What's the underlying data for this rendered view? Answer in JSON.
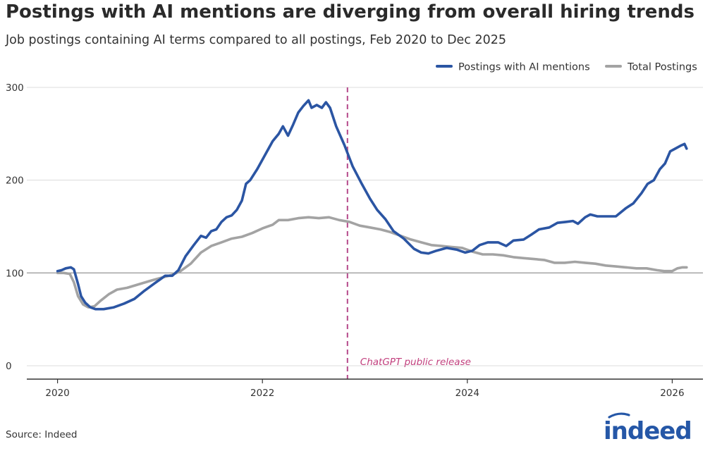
{
  "header": {
    "title": "Postings with AI mentions are diverging from overall hiring trends",
    "subtitle": "Job postings containing AI terms compared to all postings, Feb 2020 to Dec 2025"
  },
  "footer": {
    "source": "Source: Indeed"
  },
  "brand": {
    "logo_text": "indeed",
    "color": "#2557a7"
  },
  "chart_data": {
    "type": "line",
    "x_unit": "year",
    "xlim": [
      2019.7,
      2026.3
    ],
    "ylim": [
      0,
      300
    ],
    "x_ticks": [
      2020,
      2022,
      2024,
      2026
    ],
    "x_tick_labels": [
      "2020",
      "2022",
      "2024",
      "2026"
    ],
    "y_ticks": [
      0,
      100,
      200,
      300
    ],
    "y_tick_labels": [
      "0",
      "100",
      "200",
      "300"
    ],
    "grid": "horizontal",
    "baseline": 100,
    "legend": {
      "position": "top-right"
    },
    "annotation": {
      "x": 2022.83,
      "label": "ChatGPT public release",
      "color": "#b5488a"
    },
    "series": [
      {
        "name": "Postings with AI mentions",
        "color": "#2b55a3",
        "points": [
          [
            2020.0,
            102
          ],
          [
            2020.04,
            103
          ],
          [
            2020.08,
            105
          ],
          [
            2020.13,
            106
          ],
          [
            2020.16,
            104
          ],
          [
            2020.2,
            88
          ],
          [
            2020.23,
            75
          ],
          [
            2020.27,
            68
          ],
          [
            2020.32,
            63
          ],
          [
            2020.37,
            61
          ],
          [
            2020.45,
            61
          ],
          [
            2020.55,
            63
          ],
          [
            2020.65,
            67
          ],
          [
            2020.75,
            72
          ],
          [
            2020.85,
            81
          ],
          [
            2020.95,
            89
          ],
          [
            2021.0,
            93
          ],
          [
            2021.05,
            97
          ],
          [
            2021.12,
            97
          ],
          [
            2021.18,
            103
          ],
          [
            2021.25,
            118
          ],
          [
            2021.33,
            130
          ],
          [
            2021.4,
            140
          ],
          [
            2021.45,
            138
          ],
          [
            2021.5,
            145
          ],
          [
            2021.55,
            147
          ],
          [
            2021.6,
            155
          ],
          [
            2021.65,
            160
          ],
          [
            2021.7,
            162
          ],
          [
            2021.75,
            168
          ],
          [
            2021.8,
            178
          ],
          [
            2021.84,
            196
          ],
          [
            2021.88,
            200
          ],
          [
            2021.95,
            212
          ],
          [
            2022.02,
            226
          ],
          [
            2022.1,
            242
          ],
          [
            2022.16,
            250
          ],
          [
            2022.2,
            258
          ],
          [
            2022.25,
            248
          ],
          [
            2022.3,
            260
          ],
          [
            2022.35,
            273
          ],
          [
            2022.4,
            280
          ],
          [
            2022.45,
            286
          ],
          [
            2022.48,
            278
          ],
          [
            2022.53,
            281
          ],
          [
            2022.58,
            278
          ],
          [
            2022.62,
            284
          ],
          [
            2022.66,
            278
          ],
          [
            2022.72,
            258
          ],
          [
            2022.8,
            238
          ],
          [
            2022.88,
            215
          ],
          [
            2022.97,
            196
          ],
          [
            2023.05,
            180
          ],
          [
            2023.12,
            168
          ],
          [
            2023.2,
            158
          ],
          [
            2023.28,
            145
          ],
          [
            2023.38,
            137
          ],
          [
            2023.48,
            126
          ],
          [
            2023.55,
            122
          ],
          [
            2023.62,
            121
          ],
          [
            2023.7,
            124
          ],
          [
            2023.8,
            127
          ],
          [
            2023.9,
            125
          ],
          [
            2023.98,
            122
          ],
          [
            2024.05,
            124
          ],
          [
            2024.12,
            130
          ],
          [
            2024.2,
            133
          ],
          [
            2024.3,
            133
          ],
          [
            2024.38,
            129
          ],
          [
            2024.45,
            135
          ],
          [
            2024.55,
            136
          ],
          [
            2024.62,
            141
          ],
          [
            2024.7,
            147
          ],
          [
            2024.8,
            149
          ],
          [
            2024.88,
            154
          ],
          [
            2024.96,
            155
          ],
          [
            2025.03,
            156
          ],
          [
            2025.08,
            153
          ],
          [
            2025.15,
            160
          ],
          [
            2025.2,
            163
          ],
          [
            2025.27,
            161
          ],
          [
            2025.35,
            161
          ],
          [
            2025.45,
            161
          ],
          [
            2025.55,
            170
          ],
          [
            2025.62,
            175
          ],
          [
            2025.7,
            186
          ],
          [
            2025.76,
            196
          ],
          [
            2025.82,
            200
          ],
          [
            2025.88,
            212
          ],
          [
            2025.93,
            218
          ],
          [
            2025.98,
            231
          ],
          [
            2026.03,
            234
          ],
          [
            2026.08,
            237
          ],
          [
            2026.12,
            239
          ],
          [
            2026.14,
            234
          ]
        ]
      },
      {
        "name": "Total Postings",
        "color": "#a3a3a3",
        "points": [
          [
            2020.0,
            100
          ],
          [
            2020.06,
            100
          ],
          [
            2020.12,
            99
          ],
          [
            2020.16,
            90
          ],
          [
            2020.2,
            75
          ],
          [
            2020.25,
            66
          ],
          [
            2020.3,
            63
          ],
          [
            2020.36,
            64
          ],
          [
            2020.42,
            70
          ],
          [
            2020.5,
            77
          ],
          [
            2020.58,
            82
          ],
          [
            2020.68,
            84
          ],
          [
            2020.8,
            88
          ],
          [
            2020.92,
            92
          ],
          [
            2021.02,
            95
          ],
          [
            2021.12,
            98
          ],
          [
            2021.2,
            102
          ],
          [
            2021.3,
            110
          ],
          [
            2021.4,
            122
          ],
          [
            2021.5,
            129
          ],
          [
            2021.6,
            133
          ],
          [
            2021.7,
            137
          ],
          [
            2021.8,
            139
          ],
          [
            2021.9,
            143
          ],
          [
            2022.0,
            148
          ],
          [
            2022.1,
            152
          ],
          [
            2022.16,
            157
          ],
          [
            2022.25,
            157
          ],
          [
            2022.35,
            159
          ],
          [
            2022.45,
            160
          ],
          [
            2022.55,
            159
          ],
          [
            2022.65,
            160
          ],
          [
            2022.75,
            157
          ],
          [
            2022.85,
            155
          ],
          [
            2022.95,
            151
          ],
          [
            2023.05,
            149
          ],
          [
            2023.15,
            147
          ],
          [
            2023.25,
            144
          ],
          [
            2023.35,
            140
          ],
          [
            2023.45,
            136
          ],
          [
            2023.55,
            133
          ],
          [
            2023.65,
            130
          ],
          [
            2023.75,
            129
          ],
          [
            2023.85,
            128
          ],
          [
            2023.95,
            127
          ],
          [
            2024.05,
            123
          ],
          [
            2024.15,
            120
          ],
          [
            2024.25,
            120
          ],
          [
            2024.35,
            119
          ],
          [
            2024.45,
            117
          ],
          [
            2024.55,
            116
          ],
          [
            2024.65,
            115
          ],
          [
            2024.75,
            114
          ],
          [
            2024.85,
            111
          ],
          [
            2024.95,
            111
          ],
          [
            2025.05,
            112
          ],
          [
            2025.15,
            111
          ],
          [
            2025.25,
            110
          ],
          [
            2025.35,
            108
          ],
          [
            2025.45,
            107
          ],
          [
            2025.55,
            106
          ],
          [
            2025.65,
            105
          ],
          [
            2025.75,
            105
          ],
          [
            2025.85,
            103
          ],
          [
            2025.92,
            102
          ],
          [
            2026.0,
            102
          ],
          [
            2026.05,
            105
          ],
          [
            2026.1,
            106
          ],
          [
            2026.14,
            106
          ]
        ]
      }
    ]
  }
}
